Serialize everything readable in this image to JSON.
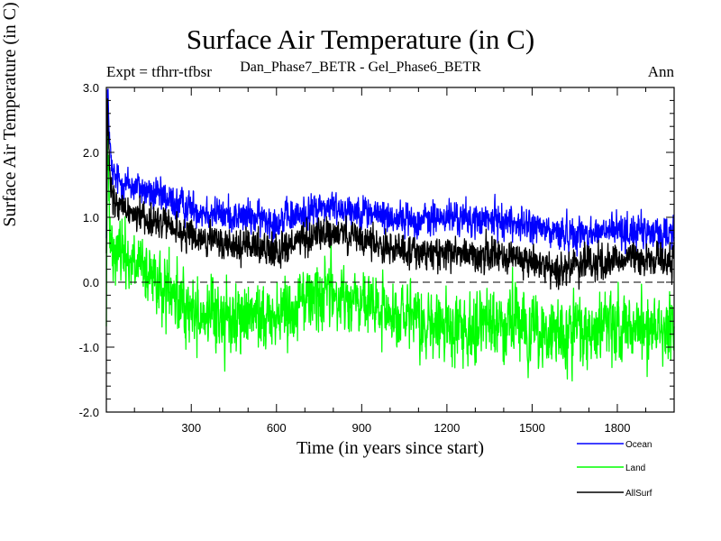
{
  "title": "Surface Air Temperature (in C)",
  "expt_label": "Expt = tfhrr-tfbsr",
  "subtitle": "Dan_Phase7_BETR - Gel_Phase6_BETR",
  "season": "Ann",
  "colors": {
    "ocean": "#0000ff",
    "land": "#00ff00",
    "allsurf": "#000000"
  },
  "chart_data": {
    "type": "line",
    "title": "Surface Air Temperature (in C)",
    "xlabel": "Time (in years since start)",
    "ylabel": "Surface Air Temperature (in C)",
    "xlim": [
      1,
      2000
    ],
    "ylim": [
      -2.0,
      3.0
    ],
    "x_ticks": [
      300,
      600,
      900,
      1200,
      1500,
      1800
    ],
    "x_tick_labels": [
      "300",
      "600",
      "900",
      "1200",
      "1500",
      "1800"
    ],
    "y_ticks": [
      -2.0,
      -1.0,
      0.0,
      1.0,
      2.0,
      3.0
    ],
    "y_tick_labels": [
      "-2.0",
      "-1.0",
      "0.0",
      "1.0",
      "2.0",
      "3.0"
    ],
    "reference_line": 0.0,
    "legend_position": "bottom-right, below plot",
    "series": [
      {
        "name": "Ocean",
        "color": "#0000ff",
        "note": "annual means, 1 per year; key points of trajectory",
        "x": [
          1,
          5,
          10,
          15,
          20,
          30,
          50,
          80,
          120,
          160,
          200,
          250,
          300,
          400,
          500,
          600,
          700,
          750,
          800,
          900,
          1000,
          1100,
          1200,
          1300,
          1400,
          1500,
          1600,
          1700,
          1800,
          1900,
          2000
        ],
        "values": [
          0.9,
          2.9,
          2.5,
          2.0,
          1.7,
          1.6,
          1.55,
          1.5,
          1.45,
          1.35,
          1.3,
          1.2,
          1.15,
          1.05,
          1.0,
          0.95,
          1.05,
          1.15,
          1.15,
          1.1,
          1.0,
          0.95,
          1.0,
          0.95,
          0.95,
          0.85,
          0.75,
          0.75,
          0.8,
          0.75,
          0.75
        ],
        "noise": 0.22
      },
      {
        "name": "Land",
        "color": "#00ff00",
        "x": [
          1,
          5,
          10,
          15,
          20,
          30,
          50,
          80,
          120,
          160,
          200,
          250,
          300,
          400,
          500,
          600,
          700,
          750,
          800,
          900,
          1000,
          1100,
          1200,
          1300,
          1400,
          1500,
          1600,
          1700,
          1800,
          1900,
          2000
        ],
        "values": [
          -0.5,
          2.0,
          1.3,
          1.0,
          0.8,
          0.5,
          0.5,
          0.4,
          0.2,
          0.0,
          -0.1,
          -0.3,
          -0.45,
          -0.55,
          -0.55,
          -0.5,
          -0.25,
          -0.15,
          -0.2,
          -0.35,
          -0.5,
          -0.65,
          -0.7,
          -0.65,
          -0.6,
          -0.75,
          -0.85,
          -0.75,
          -0.7,
          -0.7,
          -0.65
        ],
        "noise": 0.45
      },
      {
        "name": "AllSurf",
        "color": "#000000",
        "x": [
          1,
          5,
          10,
          15,
          20,
          30,
          50,
          80,
          120,
          160,
          200,
          250,
          300,
          400,
          500,
          600,
          700,
          750,
          800,
          900,
          1000,
          1100,
          1200,
          1300,
          1400,
          1500,
          1600,
          1700,
          1800,
          1900,
          2000
        ],
        "values": [
          0.4,
          2.6,
          2.0,
          1.5,
          1.3,
          1.2,
          1.15,
          1.1,
          1.05,
          0.95,
          0.9,
          0.8,
          0.7,
          0.6,
          0.55,
          0.5,
          0.65,
          0.75,
          0.75,
          0.65,
          0.55,
          0.45,
          0.45,
          0.45,
          0.4,
          0.3,
          0.2,
          0.3,
          0.35,
          0.35,
          0.35
        ],
        "noise": 0.22
      }
    ]
  },
  "legend": [
    {
      "label": "Ocean",
      "color": "#0000ff"
    },
    {
      "label": "Land",
      "color": "#00ff00"
    },
    {
      "label": "AllSurf",
      "color": "#000000"
    }
  ]
}
